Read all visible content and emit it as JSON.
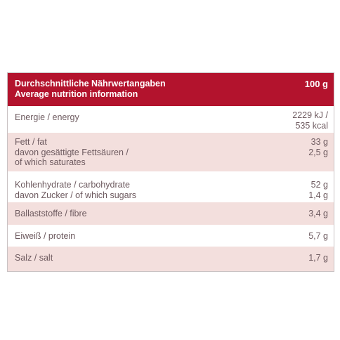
{
  "header": {
    "title_de": "Durchschnittliche Nährwertangaben",
    "title_en": "Average nutrition information",
    "per": "100 g"
  },
  "rows": [
    {
      "label_lines": [
        "Energie / energy"
      ],
      "value_lines": [
        "2229 kJ /",
        "535 kcal"
      ]
    },
    {
      "label_lines": [
        "Fett / fat",
        "davon gesättigte Fettsäuren /",
        "of which saturates"
      ],
      "value_lines": [
        "33 g",
        "2,5 g"
      ]
    },
    {
      "label_lines": [
        "Kohlenhydrate / carbohydrate",
        "davon Zucker / of which sugars"
      ],
      "value_lines": [
        "52 g",
        "1,4 g"
      ]
    },
    {
      "label_lines": [
        "Ballaststoffe / fibre"
      ],
      "value_lines": [
        "3,4 g"
      ]
    },
    {
      "label_lines": [
        "Eiweiß / protein"
      ],
      "value_lines": [
        "5,7 g"
      ]
    },
    {
      "label_lines": [
        "Salz / salt"
      ],
      "value_lines": [
        "1,7 g"
      ]
    }
  ],
  "colors": {
    "header_bg": "#b3132d",
    "row_pink": "#f3dfdd",
    "text": "#6d5a5f"
  }
}
